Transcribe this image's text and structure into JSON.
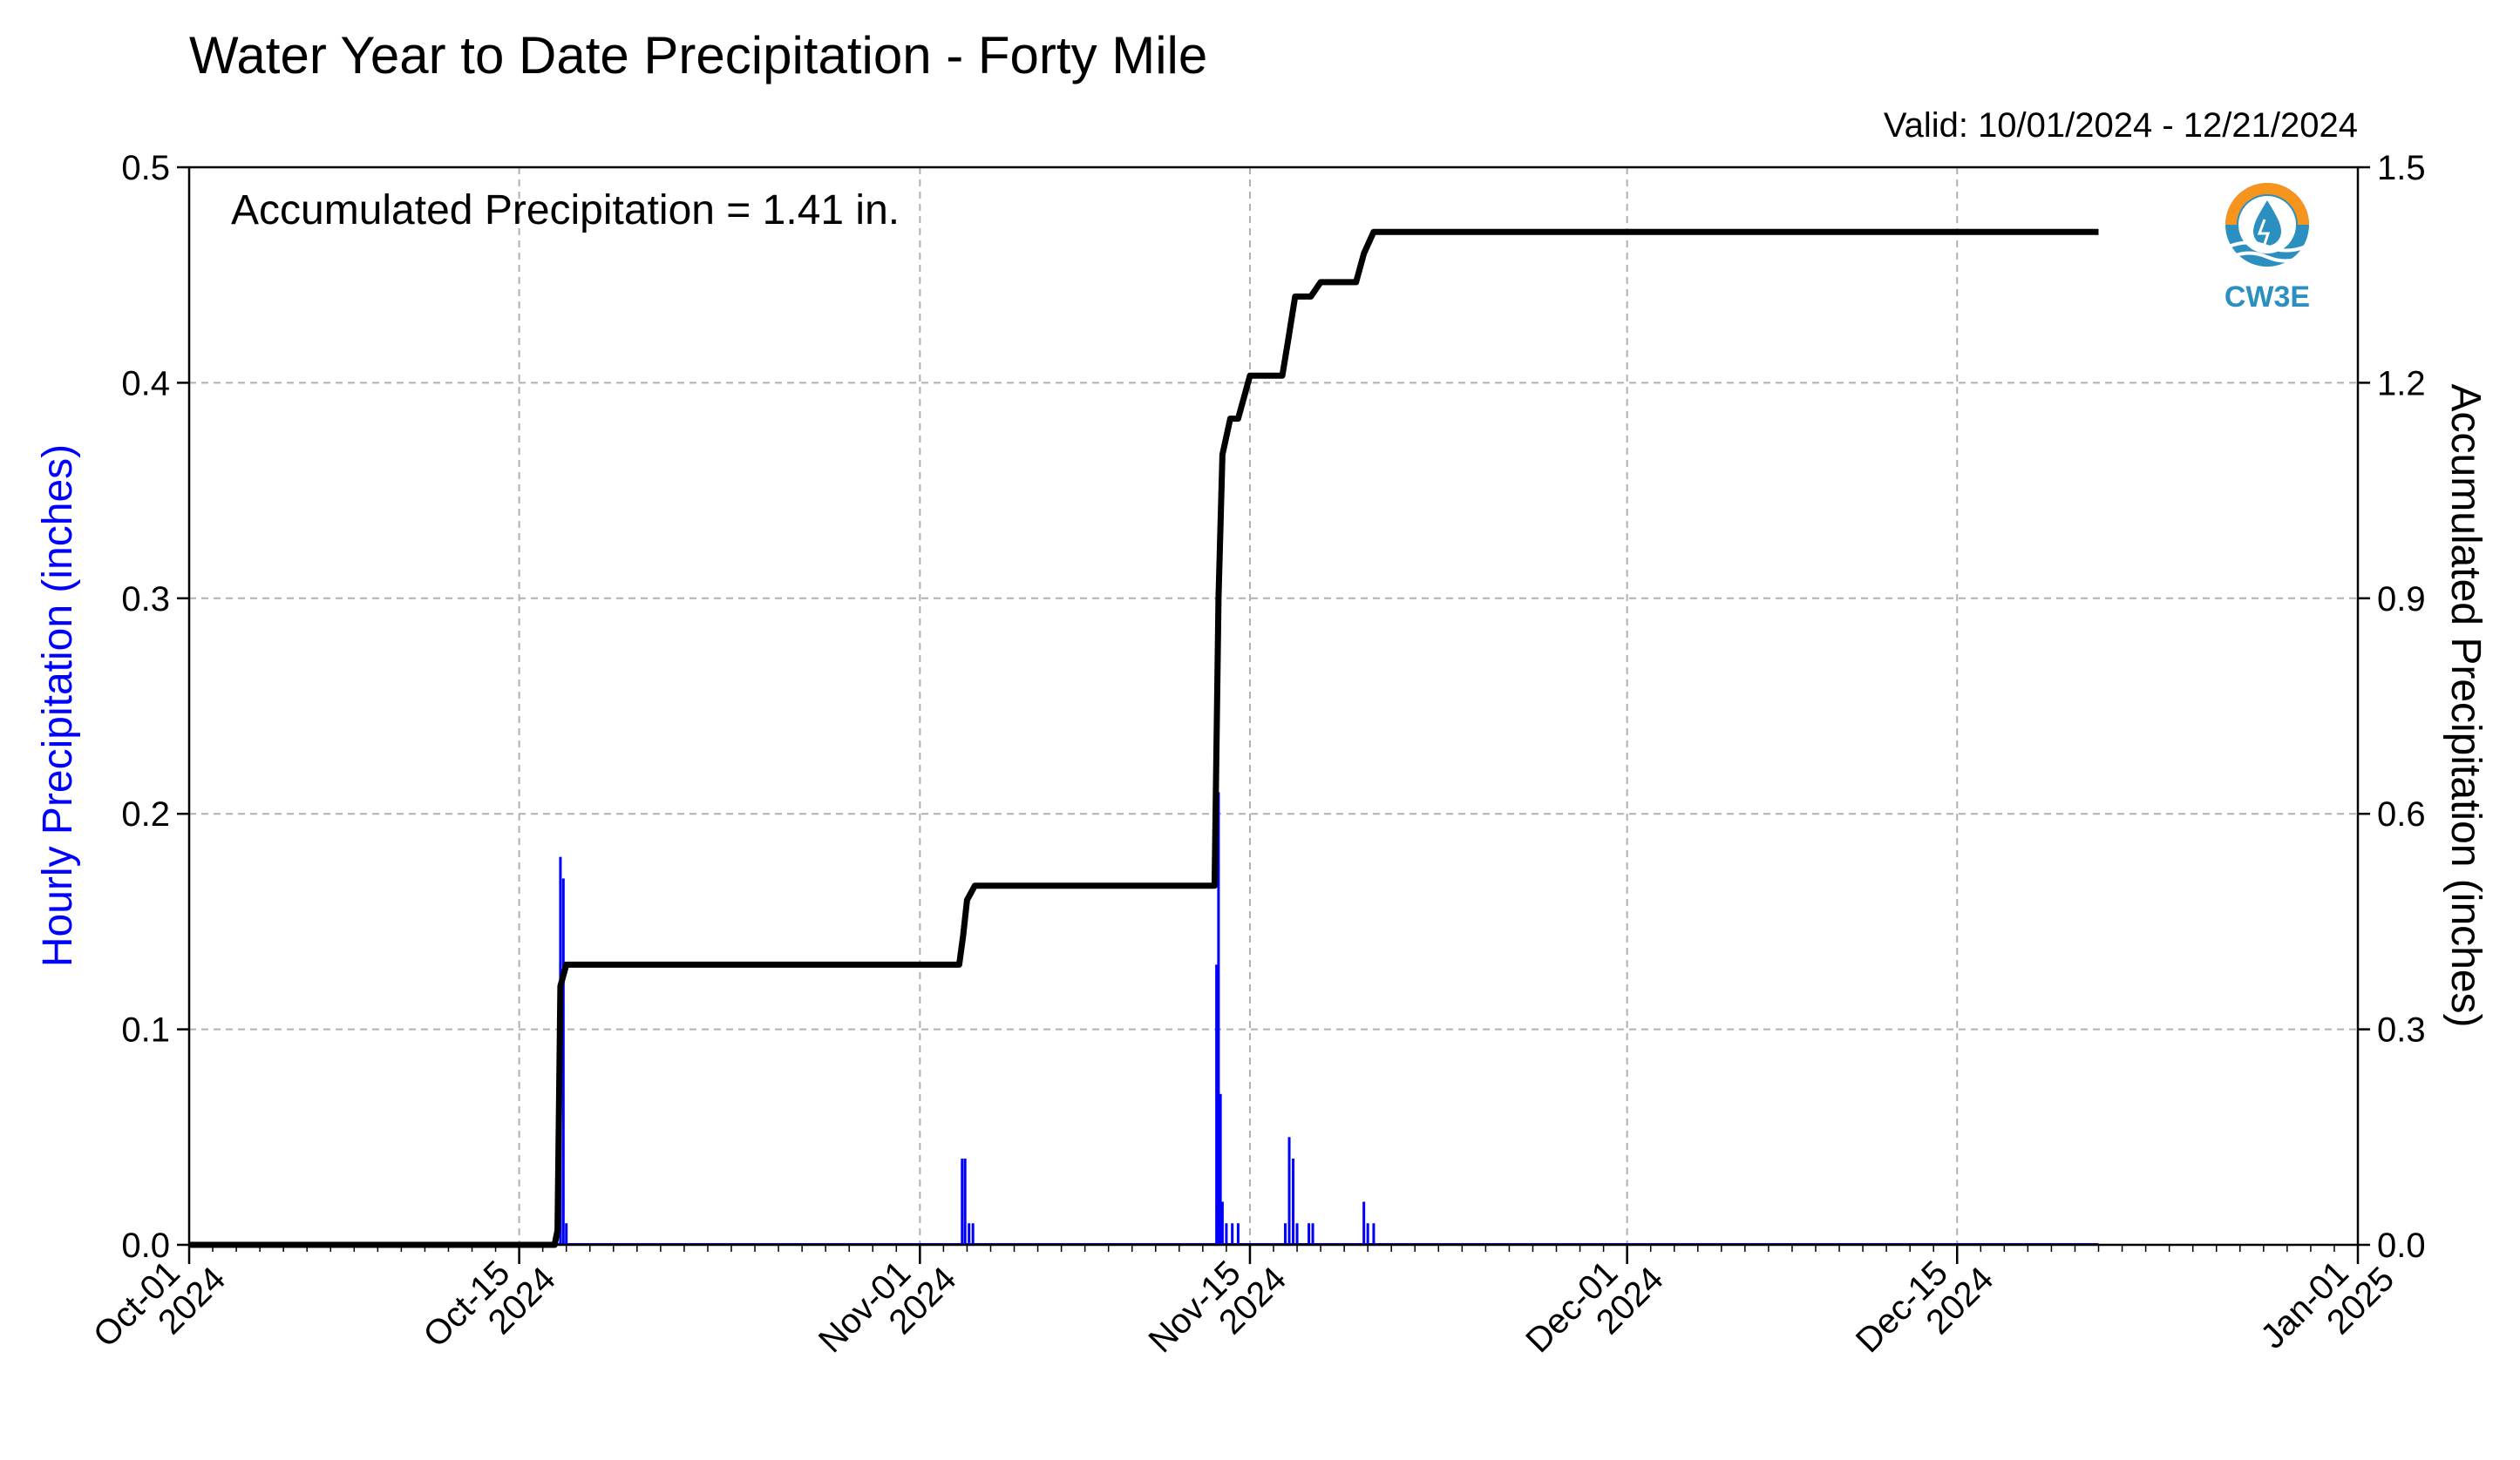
{
  "chart_data": {
    "type": "bar+line",
    "title": "Water Year to Date Precipitation - Forty Mile",
    "subtitle": "Valid: 10/01/2024 - 12/21/2024",
    "annotation": "Accumulated Precipitation = 1.41 in.",
    "logo_text": "CW3E",
    "ylabel_left": "Hourly Precipitation (inches)",
    "ylabel_right": "Accumulated Precipitation (inches)",
    "x_range": [
      "2024-10-01",
      "2025-01-01"
    ],
    "ylim_left": [
      0,
      0.5
    ],
    "ylim_right": [
      0,
      1.5
    ],
    "grid": true,
    "x_ticks": [
      {
        "date": "2024-10-01",
        "label1": "Oct-01",
        "label2": "2024"
      },
      {
        "date": "2024-10-15",
        "label1": "Oct-15",
        "label2": "2024"
      },
      {
        "date": "2024-11-01",
        "label1": "Nov-01",
        "label2": "2024"
      },
      {
        "date": "2024-11-15",
        "label1": "Nov-15",
        "label2": "2024"
      },
      {
        "date": "2024-12-01",
        "label1": "Dec-01",
        "label2": "2024"
      },
      {
        "date": "2024-12-15",
        "label1": "Dec-15",
        "label2": "2024"
      },
      {
        "date": "2025-01-01",
        "label1": "Jan-01",
        "label2": "2025"
      }
    ],
    "y_ticks_left": [
      "0.0",
      "0.1",
      "0.2",
      "0.3",
      "0.4",
      "0.5"
    ],
    "y_ticks_right": [
      "0.0",
      "0.3",
      "0.6",
      "0.9",
      "1.2",
      "1.5"
    ],
    "colors": {
      "bars": "#0000ff",
      "line": "#000000",
      "left_label": "#0000ff",
      "grid": "#b0b0b0"
    },
    "series": [
      {
        "type": "bar",
        "axis": "left",
        "points": [
          {
            "date": "2024-10-16 14:00",
            "value": 0.01
          },
          {
            "date": "2024-10-16 18:00",
            "value": 0.18
          },
          {
            "date": "2024-10-16 21:00",
            "value": 0.17
          },
          {
            "date": "2024-10-17 00:00",
            "value": 0.01
          },
          {
            "date": "2024-11-02 19:00",
            "value": 0.04
          },
          {
            "date": "2024-11-02 22:00",
            "value": 0.04
          },
          {
            "date": "2024-11-03 02:00",
            "value": 0.01
          },
          {
            "date": "2024-11-03 06:00",
            "value": 0.01
          },
          {
            "date": "2024-11-13 14:00",
            "value": 0.13
          },
          {
            "date": "2024-11-13 16:00",
            "value": 0.21
          },
          {
            "date": "2024-11-13 18:00",
            "value": 0.07
          },
          {
            "date": "2024-11-13 20:00",
            "value": 0.02
          },
          {
            "date": "2024-11-14 00:00",
            "value": 0.01
          },
          {
            "date": "2024-11-14 06:00",
            "value": 0.01
          },
          {
            "date": "2024-11-14 12:00",
            "value": 0.01
          },
          {
            "date": "2024-11-16 12:00",
            "value": 0.01
          },
          {
            "date": "2024-11-16 16:00",
            "value": 0.05
          },
          {
            "date": "2024-11-16 20:00",
            "value": 0.04
          },
          {
            "date": "2024-11-17 00:00",
            "value": 0.01
          },
          {
            "date": "2024-11-17 12:00",
            "value": 0.01
          },
          {
            "date": "2024-11-17 16:00",
            "value": 0.01
          },
          {
            "date": "2024-11-19 20:00",
            "value": 0.02
          },
          {
            "date": "2024-11-20 00:00",
            "value": 0.01
          },
          {
            "date": "2024-11-20 06:00",
            "value": 0.01
          }
        ]
      },
      {
        "type": "line",
        "axis": "right",
        "points": [
          {
            "date": "2024-10-01 00:00",
            "value": 0.0
          },
          {
            "date": "2024-10-16 12:00",
            "value": 0.0
          },
          {
            "date": "2024-10-16 15:00",
            "value": 0.02
          },
          {
            "date": "2024-10-16 18:00",
            "value": 0.36
          },
          {
            "date": "2024-10-17 00:00",
            "value": 0.39
          },
          {
            "date": "2024-11-02 16:00",
            "value": 0.39
          },
          {
            "date": "2024-11-02 20:00",
            "value": 0.43
          },
          {
            "date": "2024-11-03 00:00",
            "value": 0.48
          },
          {
            "date": "2024-11-03 08:00",
            "value": 0.5
          },
          {
            "date": "2024-11-13 12:00",
            "value": 0.5
          },
          {
            "date": "2024-11-13 16:00",
            "value": 0.9
          },
          {
            "date": "2024-11-13 20:00",
            "value": 1.1
          },
          {
            "date": "2024-11-14 04:00",
            "value": 1.15
          },
          {
            "date": "2024-11-14 12:00",
            "value": 1.15
          },
          {
            "date": "2024-11-14 18:00",
            "value": 1.18
          },
          {
            "date": "2024-11-15 00:00",
            "value": 1.21
          },
          {
            "date": "2024-11-16 09:00",
            "value": 1.21
          },
          {
            "date": "2024-11-16 15:00",
            "value": 1.26
          },
          {
            "date": "2024-11-16 22:00",
            "value": 1.32
          },
          {
            "date": "2024-11-17 14:00",
            "value": 1.32
          },
          {
            "date": "2024-11-18 00:00",
            "value": 1.34
          },
          {
            "date": "2024-11-19 12:00",
            "value": 1.34
          },
          {
            "date": "2024-11-19 20:00",
            "value": 1.38
          },
          {
            "date": "2024-11-20 06:00",
            "value": 1.41
          },
          {
            "date": "2024-12-21 00:00",
            "value": 1.41
          }
        ]
      }
    ]
  }
}
